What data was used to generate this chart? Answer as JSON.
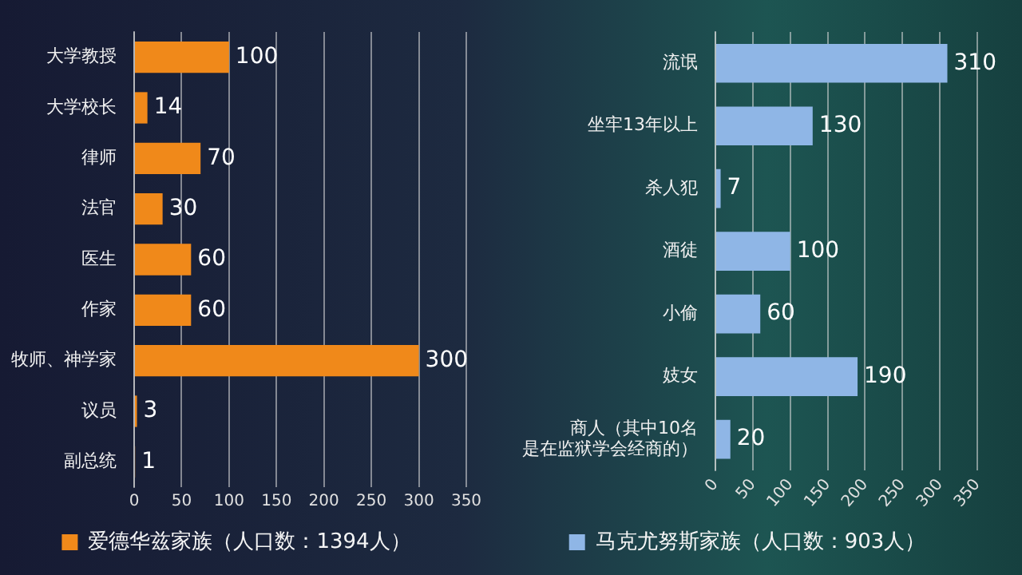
{
  "chart_data": [
    {
      "type": "bar",
      "orientation": "horizontal",
      "categories": [
        "大学教授",
        "大学校长",
        "律师",
        "法官",
        "医生",
        "作家",
        "牧师、神学家",
        "议员",
        "副总统"
      ],
      "series": [
        {
          "name": "爱德华兹家族（人口数：1394人）",
          "color": "#f0891a",
          "values": [
            100,
            14,
            70,
            30,
            60,
            60,
            300,
            3,
            1
          ]
        }
      ],
      "xlim": [
        0,
        350
      ],
      "xticks": [
        0,
        50,
        100,
        150,
        200,
        250,
        300,
        350
      ],
      "grid": "x",
      "legend": "bottom",
      "data_labels": true
    },
    {
      "type": "bar",
      "orientation": "horizontal",
      "categories": [
        "流氓",
        "坐牢13年以上",
        "杀人犯",
        "酒徒",
        "小偷",
        "妓女",
        "商人（其中10名是在监狱学会经商的）"
      ],
      "series": [
        {
          "name": "马克尤努斯家族（人口数：903人）",
          "color": "#8fb6e6",
          "values": [
            310,
            130,
            7,
            100,
            60,
            190,
            20
          ]
        }
      ],
      "xlim": [
        0,
        350
      ],
      "xticks": [
        0,
        50,
        100,
        150,
        200,
        250,
        300,
        350
      ],
      "grid": "x",
      "legend": "bottom",
      "data_labels": true
    }
  ]
}
